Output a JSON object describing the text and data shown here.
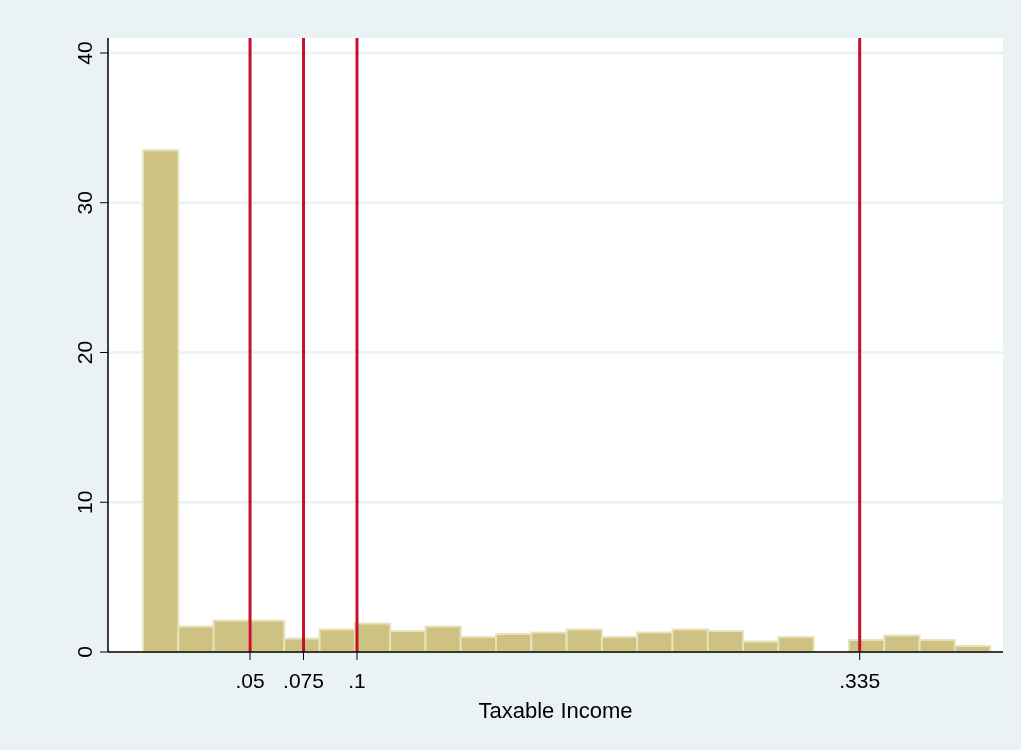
{
  "chart_data": {
    "type": "histogram",
    "xlabel": "Taxable Income",
    "color": "#cdc281",
    "bins": [
      0,
      0.0165,
      0.033,
      0.0495,
      0.066,
      0.0825,
      0.099,
      0.1155,
      0.132,
      0.1485,
      0.165,
      0.1815,
      0.198,
      0.2145,
      0.231,
      0.2475,
      0.264,
      0.2805,
      0.297,
      0.3135,
      0.33,
      0.3465,
      0.363,
      0.3795,
      0.396
    ],
    "values": [
      33.5,
      1.7,
      2.1,
      2.1,
      0.9,
      1.5,
      1.9,
      1.4,
      1.7,
      1.0,
      1.2,
      1.3,
      1.5,
      1.0,
      1.3,
      1.5,
      1.4,
      0.7,
      1.0,
      0,
      0.8,
      1.1,
      0.8,
      0.4
    ],
    "xlim": [
      -0.0164,
      0.402
    ],
    "xticks": [
      {
        "value": 0.05,
        "label": ".05"
      },
      {
        "value": 0.075,
        "label": ".075"
      },
      {
        "value": 0.1,
        "label": ".1"
      },
      {
        "value": 0.335,
        "label": ".335"
      }
    ],
    "ylim": [
      0,
      41
    ],
    "yticks": [
      0,
      10,
      20,
      30,
      40
    ],
    "grid": "y",
    "ref_lines": [
      {
        "axis": "x",
        "value": 0.05,
        "color": "#c8102e"
      },
      {
        "axis": "x",
        "value": 0.075,
        "color": "#c8102e"
      },
      {
        "axis": "x",
        "value": 0.1,
        "color": "#c8102e"
      },
      {
        "axis": "x",
        "value": 0.335,
        "color": "#c8102e"
      }
    ]
  }
}
